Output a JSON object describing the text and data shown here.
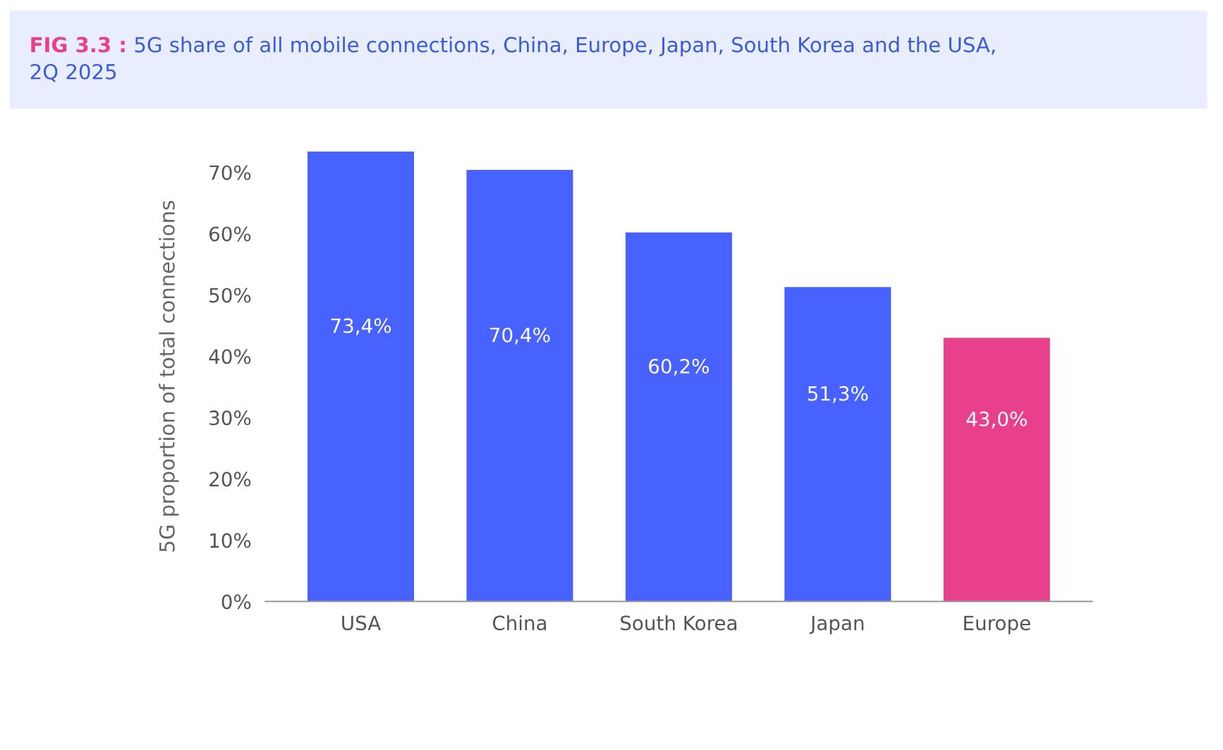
{
  "chart_data": {
    "type": "bar",
    "title": "FIG 3.3 : 5G share of all mobile connections, China, Europe, Japan, South Korea and the USA, 2Q 2025",
    "ylabel": "5G proportion of total connections",
    "categories": [
      "USA",
      "China",
      "South Korea",
      "Japan",
      "Europe"
    ],
    "values": [
      73.4,
      70.4,
      60.2,
      51.3,
      43.0
    ],
    "colors": [
      "#4762ff",
      "#4762ff",
      "#4762ff",
      "#4762ff",
      "#e8408c"
    ],
    "value_labels": [
      "73,4%",
      "70,4%",
      "60,2%",
      "51,3%",
      "43,0%"
    ],
    "ylim": [
      0,
      73.4
    ],
    "yticks": [
      {
        "value": 0,
        "label": "0%"
      },
      {
        "value": 10,
        "label": "10%"
      },
      {
        "value": 20,
        "label": "20%"
      },
      {
        "value": 30,
        "label": "30%"
      },
      {
        "value": 40,
        "label": "40%"
      },
      {
        "value": 50,
        "label": "50%"
      },
      {
        "value": 60,
        "label": "60%"
      },
      {
        "value": 70,
        "label": "70%"
      }
    ],
    "grid": false
  }
}
